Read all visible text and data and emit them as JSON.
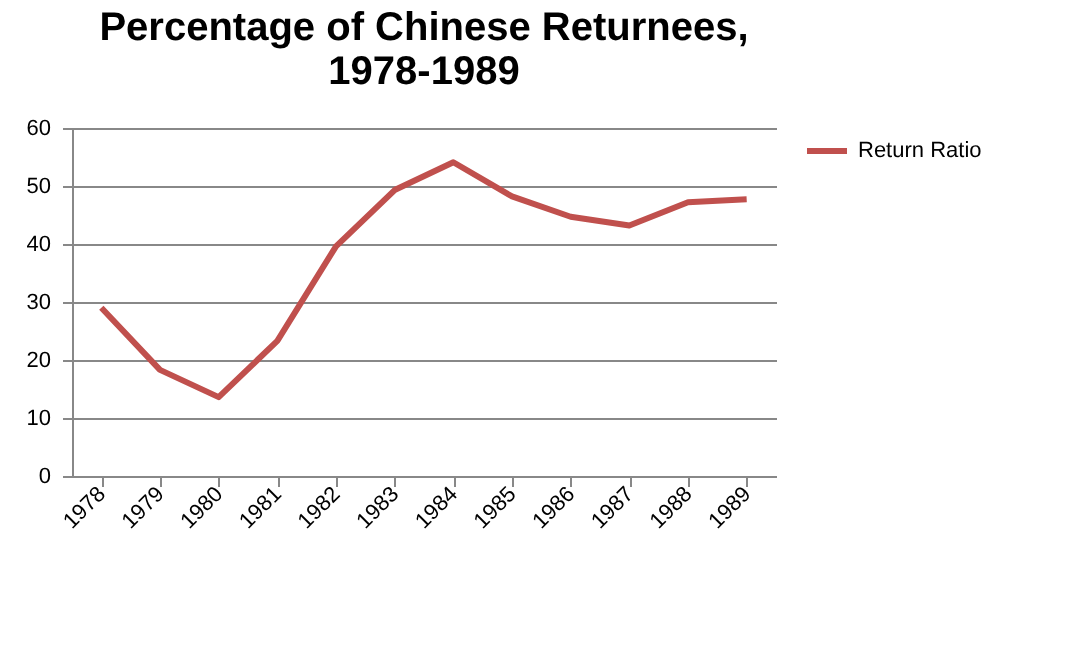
{
  "chart_data": {
    "type": "line",
    "title": "Percentage of Chinese Returnees,\n1978-1989",
    "categories": [
      "1978",
      "1979",
      "1980",
      "1981",
      "1982",
      "1983",
      "1984",
      "1985",
      "1986",
      "1987",
      "1988",
      "1989"
    ],
    "series": [
      {
        "name": "Return Ratio",
        "color": "#c0504d",
        "values": [
          29.0,
          18.3,
          13.6,
          23.3,
          39.6,
          49.3,
          54.1,
          48.2,
          44.7,
          43.2,
          47.2,
          47.7
        ]
      }
    ],
    "ylim": [
      0,
      60
    ],
    "yticks": [
      0,
      10,
      20,
      30,
      40,
      50,
      60
    ],
    "grid": "y",
    "legend": "right",
    "marker": "none",
    "line_style": "solid"
  }
}
